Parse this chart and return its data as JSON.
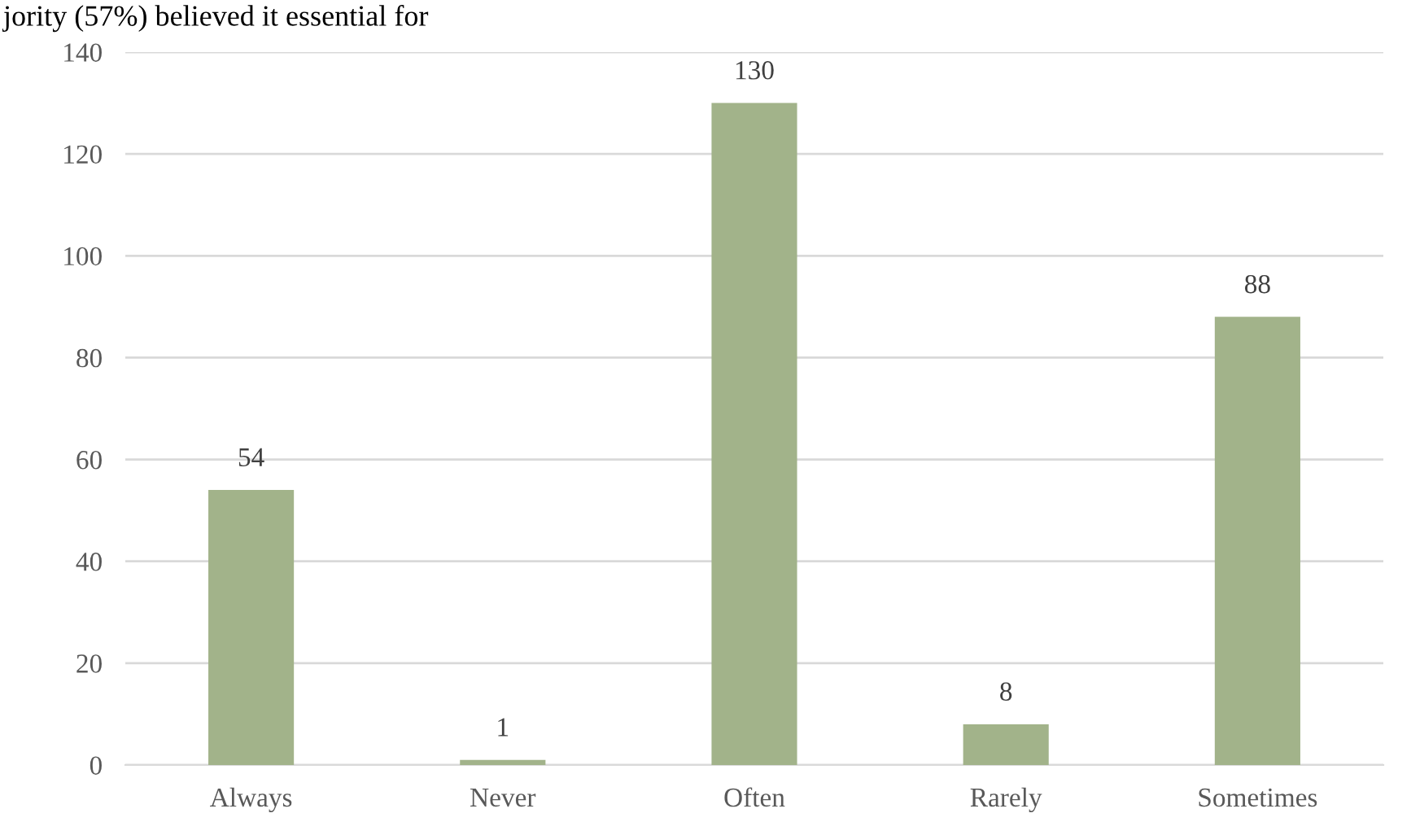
{
  "chart_data": {
    "type": "bar",
    "annotations": [
      "jority (57%) believed it essential for"
    ],
    "categories": [
      "Always",
      "Never",
      "Often",
      "Rarely",
      "Sometimes"
    ],
    "values": [
      54,
      1,
      130,
      8,
      88
    ],
    "color": "#a2b38a",
    "ylim": [
      0,
      140
    ],
    "yticks": [
      0,
      20,
      40,
      60,
      80,
      100,
      120,
      140
    ],
    "grid": "y",
    "data_labels": true,
    "legend": false
  }
}
